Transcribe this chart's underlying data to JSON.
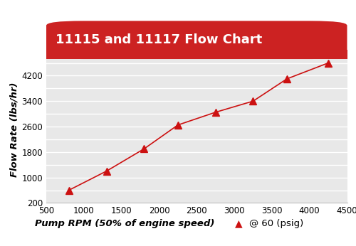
{
  "title": "11115 and 11117 Flow Chart",
  "xlabel": "Pump RPM (50% of engine speed)",
  "ylabel": "Flow Rate (lbs/hr)",
  "legend_label": "@ 60 (psig)",
  "x_data": [
    800,
    1300,
    1800,
    2250,
    2750,
    3250,
    3700,
    4250
  ],
  "y_data": [
    600,
    1200,
    1900,
    2650,
    3050,
    3400,
    4100,
    4600
  ],
  "xlim": [
    500,
    4500
  ],
  "ylim": [
    200,
    4800
  ],
  "xticks": [
    500,
    1000,
    1500,
    2000,
    2500,
    3000,
    3500,
    4000,
    4500
  ],
  "yticks": [
    200,
    600,
    1000,
    1400,
    1800,
    2200,
    2600,
    3000,
    3400,
    3800,
    4200,
    4600
  ],
  "ytick_labels": [
    "200",
    "",
    "1000",
    "",
    "1800",
    "",
    "2600",
    "",
    "3400",
    "",
    "4200",
    ""
  ],
  "line_color": "#cc1111",
  "marker_color": "#cc1111",
  "title_bg_color": "#cc2222",
  "title_text_color": "#ffffff",
  "plot_bg_color": "#e8e8e8",
  "outer_bg_color": "#ffffff",
  "grid_color": "#ffffff",
  "title_fontsize": 13,
  "axis_label_fontsize": 9.5,
  "tick_fontsize": 8.5
}
